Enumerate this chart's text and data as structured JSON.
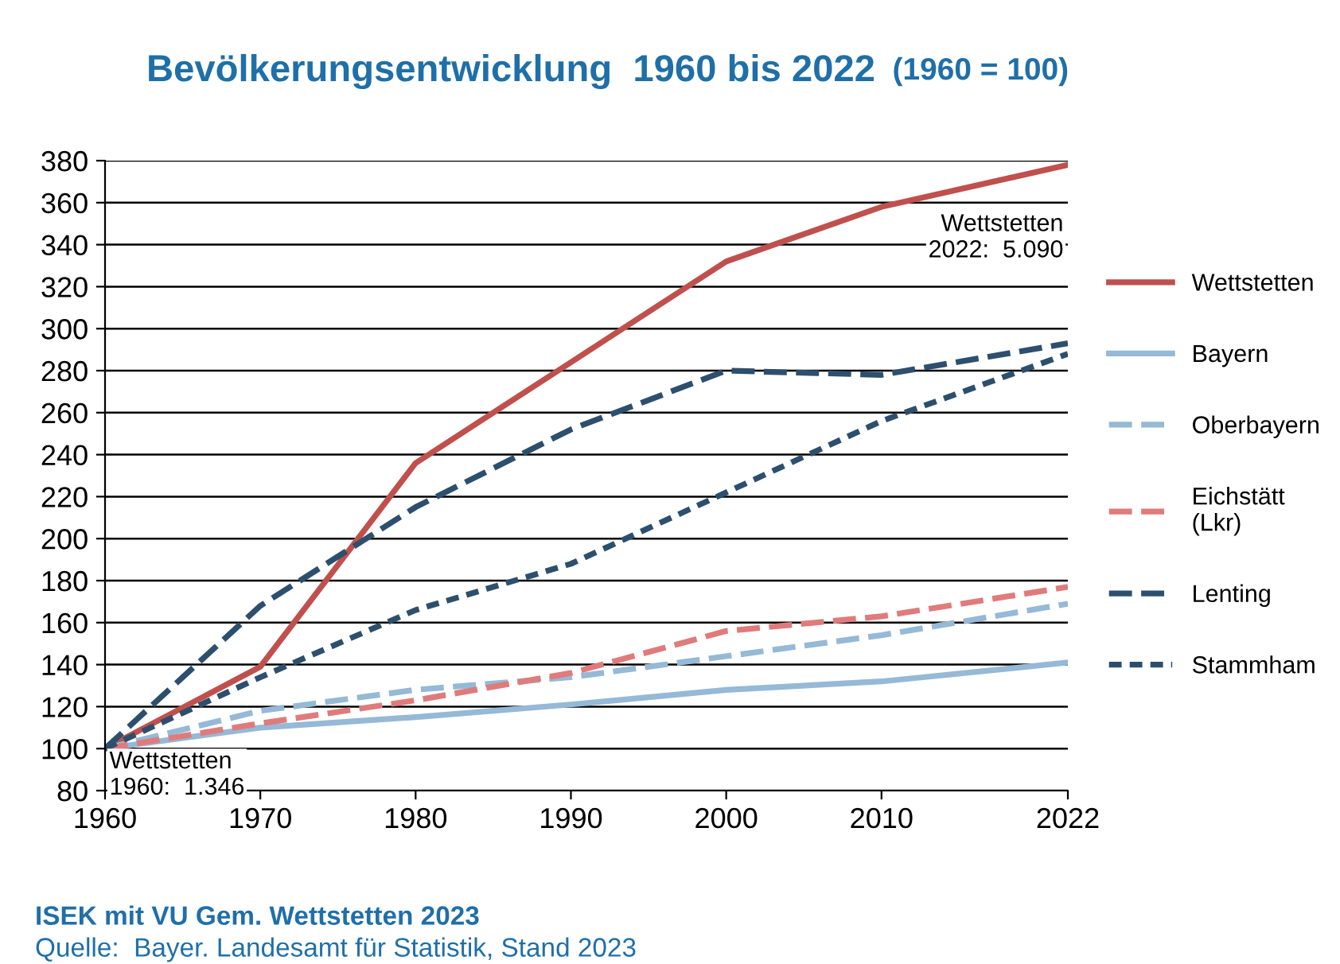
{
  "chart_data": {
    "type": "line",
    "title": "Bevölkerungsentwicklung  1960 bis 2022",
    "subtitle": "(1960 = 100)",
    "x": [
      1960,
      1970,
      1980,
      1990,
      2000,
      2010,
      2022
    ],
    "xlim": [
      1960,
      2022
    ],
    "xticks": [
      1960,
      1970,
      1980,
      1990,
      2000,
      2010,
      2022
    ],
    "ylim": [
      80,
      380
    ],
    "yticks": [
      80,
      100,
      120,
      140,
      160,
      180,
      200,
      220,
      240,
      260,
      280,
      300,
      320,
      340,
      360,
      380
    ],
    "grid": "y",
    "legend": "right",
    "series": [
      {
        "name": "Wettstetten",
        "color": "#c0504d",
        "line_style": "solid",
        "values": [
          100,
          139,
          236,
          284,
          332,
          358,
          378
        ]
      },
      {
        "name": "Bayern",
        "color": "#95b9d6",
        "line_style": "solid",
        "values": [
          100,
          110,
          115,
          121,
          128,
          132,
          141
        ]
      },
      {
        "name": "Oberbayern",
        "color": "#95b9d6",
        "line_style": "dashed",
        "values": [
          100,
          118,
          128,
          134,
          144,
          154,
          169
        ]
      },
      {
        "name": "Eichstätt\n(Lkr)",
        "color": "#e07b7b",
        "line_style": "dashed",
        "values": [
          100,
          112,
          123,
          136,
          156,
          163,
          177
        ]
      },
      {
        "name": "Lenting",
        "color": "#2d4f6e",
        "line_style": "dashed",
        "values": [
          100,
          168,
          215,
          252,
          280,
          278,
          293
        ]
      },
      {
        "name": "Stammham",
        "color": "#2d4f6e",
        "line_style": "dotted",
        "values": [
          100,
          134,
          166,
          188,
          222,
          256,
          288
        ]
      }
    ],
    "annotations": [
      {
        "text": "Wettstetten\n2022:  5.090",
        "x": 2022,
        "y": 378
      },
      {
        "text": "Wettstetten\n1960:  1.346",
        "x": 1960,
        "y": 100
      },
      "ISEK mit VU Gem. Wettstetten 2023",
      "Quelle:  Bayer. Landesamt für Statistik, Stand 2023"
    ]
  }
}
